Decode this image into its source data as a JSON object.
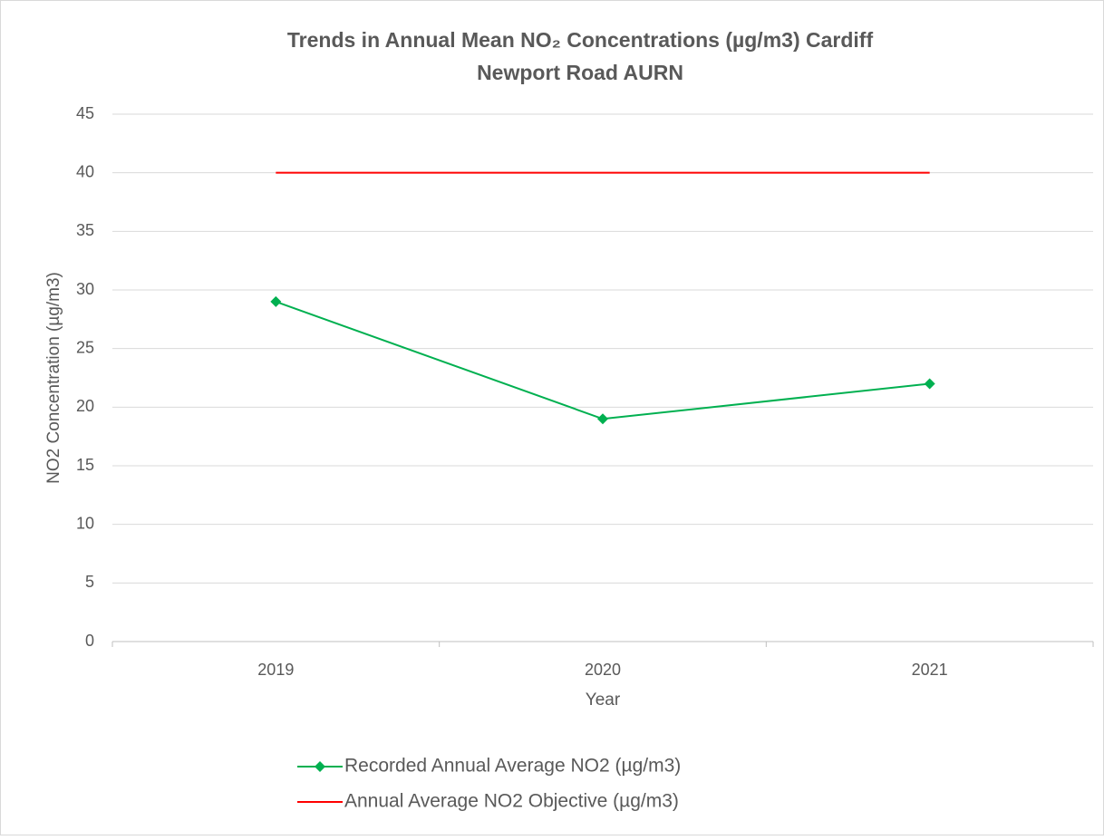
{
  "chart_data": {
    "type": "line",
    "title": [
      "Trends in Annual Mean NO₂ Concentrations (µg/m3) Cardiff",
      "Newport Road AURN"
    ],
    "x_label": "Year",
    "y_label": "NO2 Concentration (µg/m3)",
    "categories": [
      "2019",
      "2020",
      "2021"
    ],
    "series": [
      {
        "name": "Recorded Annual Average NO2  (µg/m3)",
        "color": "#00b050",
        "marker": "diamond",
        "values": [
          29,
          19,
          22
        ]
      },
      {
        "name": "Annual Average NO2 Objective (µg/m3)",
        "color": "#ff0000",
        "marker": null,
        "values": [
          40,
          40,
          40
        ]
      }
    ],
    "ylim": [
      0,
      45
    ],
    "yticks": [
      0,
      5,
      10,
      15,
      20,
      25,
      30,
      35,
      40,
      45
    ],
    "grid": true,
    "legend": "bottom"
  }
}
